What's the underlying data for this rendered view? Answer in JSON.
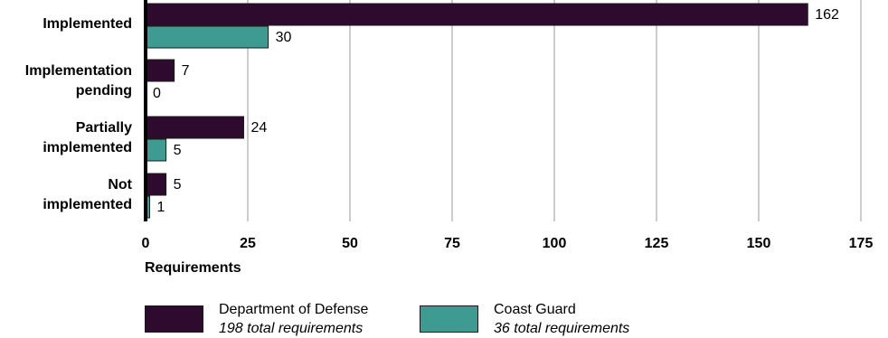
{
  "chart_data": {
    "type": "bar",
    "orientation": "horizontal",
    "categories": [
      [
        "Implemented"
      ],
      [
        "Implementation",
        "pending"
      ],
      [
        "Partially",
        "implemented"
      ],
      [
        "Not",
        "implemented"
      ]
    ],
    "series": [
      {
        "name": "Department of Defense",
        "note": "198 total requirements",
        "values": [
          162,
          7,
          24,
          5
        ],
        "color": "#2d0a2e"
      },
      {
        "name": "Coast Guard",
        "note": "36 total requirements",
        "values": [
          30,
          0,
          5,
          1
        ],
        "color": "#3e9b92"
      }
    ],
    "xlabel": "Requirements",
    "xlim": [
      0,
      175
    ],
    "xticks": [
      0,
      25,
      50,
      75,
      100,
      125,
      150,
      175
    ],
    "grid": "vertical",
    "legend": "bottom",
    "data_labels": true
  }
}
